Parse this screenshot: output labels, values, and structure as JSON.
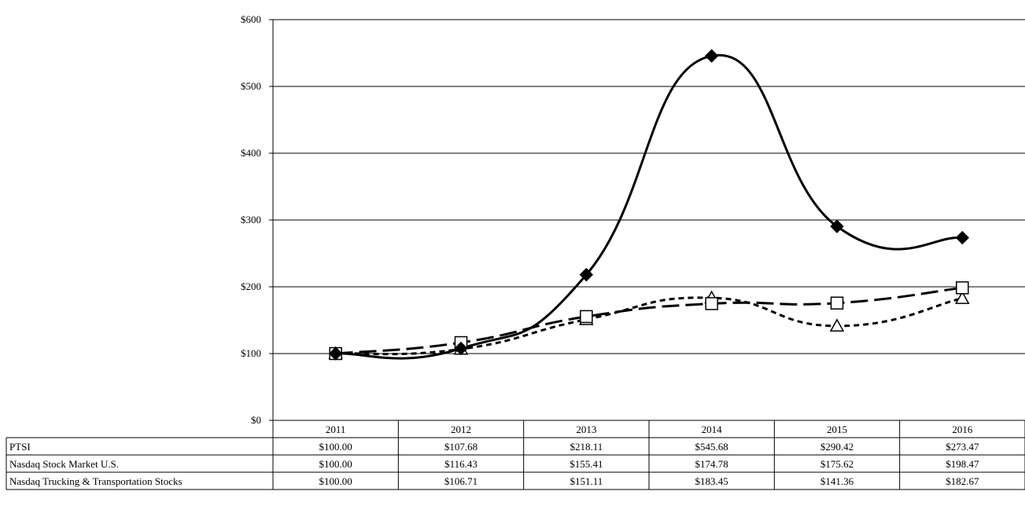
{
  "chart_data": {
    "type": "line",
    "title": "",
    "xlabel": "",
    "ylabel": "",
    "categories": [
      "2011",
      "2012",
      "2013",
      "2014",
      "2015",
      "2016"
    ],
    "ylim": [
      0,
      600
    ],
    "yticks": [
      0,
      100,
      200,
      300,
      400,
      500,
      600
    ],
    "ytick_labels": [
      "$0",
      "$100",
      "$200",
      "$300",
      "$400",
      "$500",
      "$600"
    ],
    "grid": true,
    "legend": "data table below chart",
    "series": [
      {
        "name": "PTSI",
        "values": [
          100.0,
          107.68,
          218.11,
          545.68,
          290.42,
          273.47
        ],
        "labels": [
          "$100.00",
          "$107.68",
          "$218.11",
          "$545.68",
          "$290.42",
          "$273.47"
        ],
        "marker": "diamond",
        "line_style": "solid",
        "color": "#000000"
      },
      {
        "name": "Nasdaq Stock Market U.S.",
        "values": [
          100.0,
          116.43,
          155.41,
          174.78,
          175.62,
          198.47
        ],
        "labels": [
          "$100.00",
          "$116.43",
          "$155.41",
          "$174.78",
          "$175.62",
          "$198.47"
        ],
        "marker": "square",
        "line_style": "long-dash",
        "color": "#000000"
      },
      {
        "name": "Nasdaq Trucking & Transportation Stocks",
        "values": [
          100.0,
          106.71,
          151.11,
          183.45,
          141.36,
          182.67
        ],
        "labels": [
          "$100.00",
          "$106.71",
          "$151.11",
          "$183.45",
          "$141.36",
          "$182.67"
        ],
        "marker": "triangle",
        "line_style": "short-dash",
        "color": "#000000"
      }
    ]
  }
}
